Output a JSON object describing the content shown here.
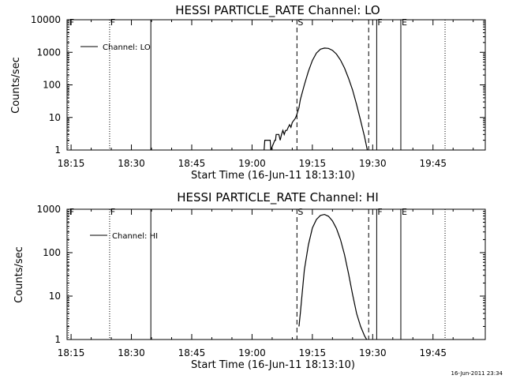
{
  "chart_data": [
    {
      "type": "line",
      "title": "HESSI PARTICLE_RATE Channel: LO",
      "xlabel": "Start Time (16-Jun-11 18:13:10)",
      "ylabel": "Counts/sec",
      "y_scale": "log",
      "ylim": [
        1,
        10000
      ],
      "xlim": [
        "18:14",
        "19:58"
      ],
      "x_ticks": [
        "18:15",
        "18:30",
        "18:45",
        "19:00",
        "19:15",
        "19:30",
        "19:45"
      ],
      "y_ticks": [
        "1",
        "10",
        "100",
        "1000",
        "10000"
      ],
      "legend": {
        "label": "Channel: LO",
        "position": "top-left"
      },
      "markers": [
        {
          "label": "F",
          "time": "18:14:20",
          "style": "dotted"
        },
        {
          "label": "F",
          "time": "18:24:35",
          "style": "dotted"
        },
        {
          "label": "",
          "time": "18:34:50",
          "style": "solid"
        },
        {
          "label": "S",
          "time": "19:11:10",
          "style": "dashed"
        },
        {
          "label": "",
          "time": "19:29:00",
          "style": "dashed"
        },
        {
          "label": "F",
          "time": "19:31:00",
          "style": "solid"
        },
        {
          "label": "E",
          "time": "19:37:00",
          "style": "solid"
        },
        {
          "label": "",
          "time": "19:48:00",
          "style": "dotted"
        }
      ],
      "series": [
        {
          "x": [
            "19:03:00",
            "19:03:10",
            "19:04:30",
            "19:04:40",
            "19:05:40",
            "19:05:50",
            "19:06:00",
            "19:06:40",
            "19:07:00",
            "19:07:20",
            "19:07:40",
            "19:08:00",
            "19:08:20",
            "19:08:40",
            "19:09:00",
            "19:09:20",
            "19:09:40",
            "19:10:00",
            "19:10:20",
            "19:10:40",
            "19:11:00",
            "19:11:40",
            "19:12:00",
            "19:13:00",
            "19:14:00",
            "19:15:00",
            "19:16:00",
            "19:17:00",
            "19:18:00",
            "19:19:00",
            "19:20:00",
            "19:21:00",
            "19:22:00",
            "19:23:00",
            "19:24:00",
            "19:25:00",
            "19:26:00",
            "19:27:00",
            "19:28:00",
            "19:28:40"
          ],
          "y": [
            1,
            2,
            2,
            1,
            2,
            2,
            3,
            3,
            2,
            3,
            4,
            3,
            4,
            4,
            5,
            6,
            5,
            7,
            8,
            9,
            11,
            20,
            35,
            100,
            260,
            560,
            950,
            1250,
            1350,
            1320,
            1150,
            880,
            580,
            330,
            160,
            70,
            25,
            8,
            2.5,
            1
          ]
        }
      ]
    },
    {
      "type": "line",
      "title": "HESSI PARTICLE_RATE Channel: HI",
      "xlabel": "Start Time (16-Jun-11 18:13:10)",
      "ylabel": "Counts/sec",
      "y_scale": "log",
      "ylim": [
        1,
        1000
      ],
      "xlim": [
        "18:14",
        "19:58"
      ],
      "x_ticks": [
        "18:15",
        "18:30",
        "18:45",
        "19:00",
        "19:15",
        "19:30",
        "19:45"
      ],
      "y_ticks": [
        "1",
        "10",
        "100",
        "1000"
      ],
      "legend": {
        "label": "Channel: HI",
        "position": "top-left"
      },
      "markers": [
        {
          "label": "F",
          "time": "18:14:20",
          "style": "dotted"
        },
        {
          "label": "F",
          "time": "18:24:35",
          "style": "dotted"
        },
        {
          "label": "",
          "time": "18:34:50",
          "style": "solid"
        },
        {
          "label": "S",
          "time": "19:11:10",
          "style": "dashed"
        },
        {
          "label": "",
          "time": "19:29:00",
          "style": "dashed"
        },
        {
          "label": "F",
          "time": "19:31:00",
          "style": "solid"
        },
        {
          "label": "E",
          "time": "19:37:00",
          "style": "solid"
        },
        {
          "label": "",
          "time": "19:48:00",
          "style": "dotted"
        }
      ],
      "series": [
        {
          "x": [
            "19:11:40",
            "19:12:00",
            "19:13:00",
            "19:14:00",
            "19:15:00",
            "19:16:00",
            "19:17:00",
            "19:18:00",
            "19:19:00",
            "19:20:00",
            "19:21:00",
            "19:22:00",
            "19:23:00",
            "19:24:00",
            "19:25:00",
            "19:26:00",
            "19:27:00",
            "19:28:00",
            "19:28:30"
          ],
          "y": [
            2,
            4,
            40,
            150,
            370,
            580,
            720,
            760,
            690,
            540,
            360,
            200,
            90,
            33,
            11,
            4,
            2,
            1.2,
            1
          ]
        }
      ]
    }
  ],
  "footer": {
    "timestamp": "16-Jun-2011 23:34"
  },
  "colors": {
    "line": "#000000",
    "background": "#ffffff"
  }
}
